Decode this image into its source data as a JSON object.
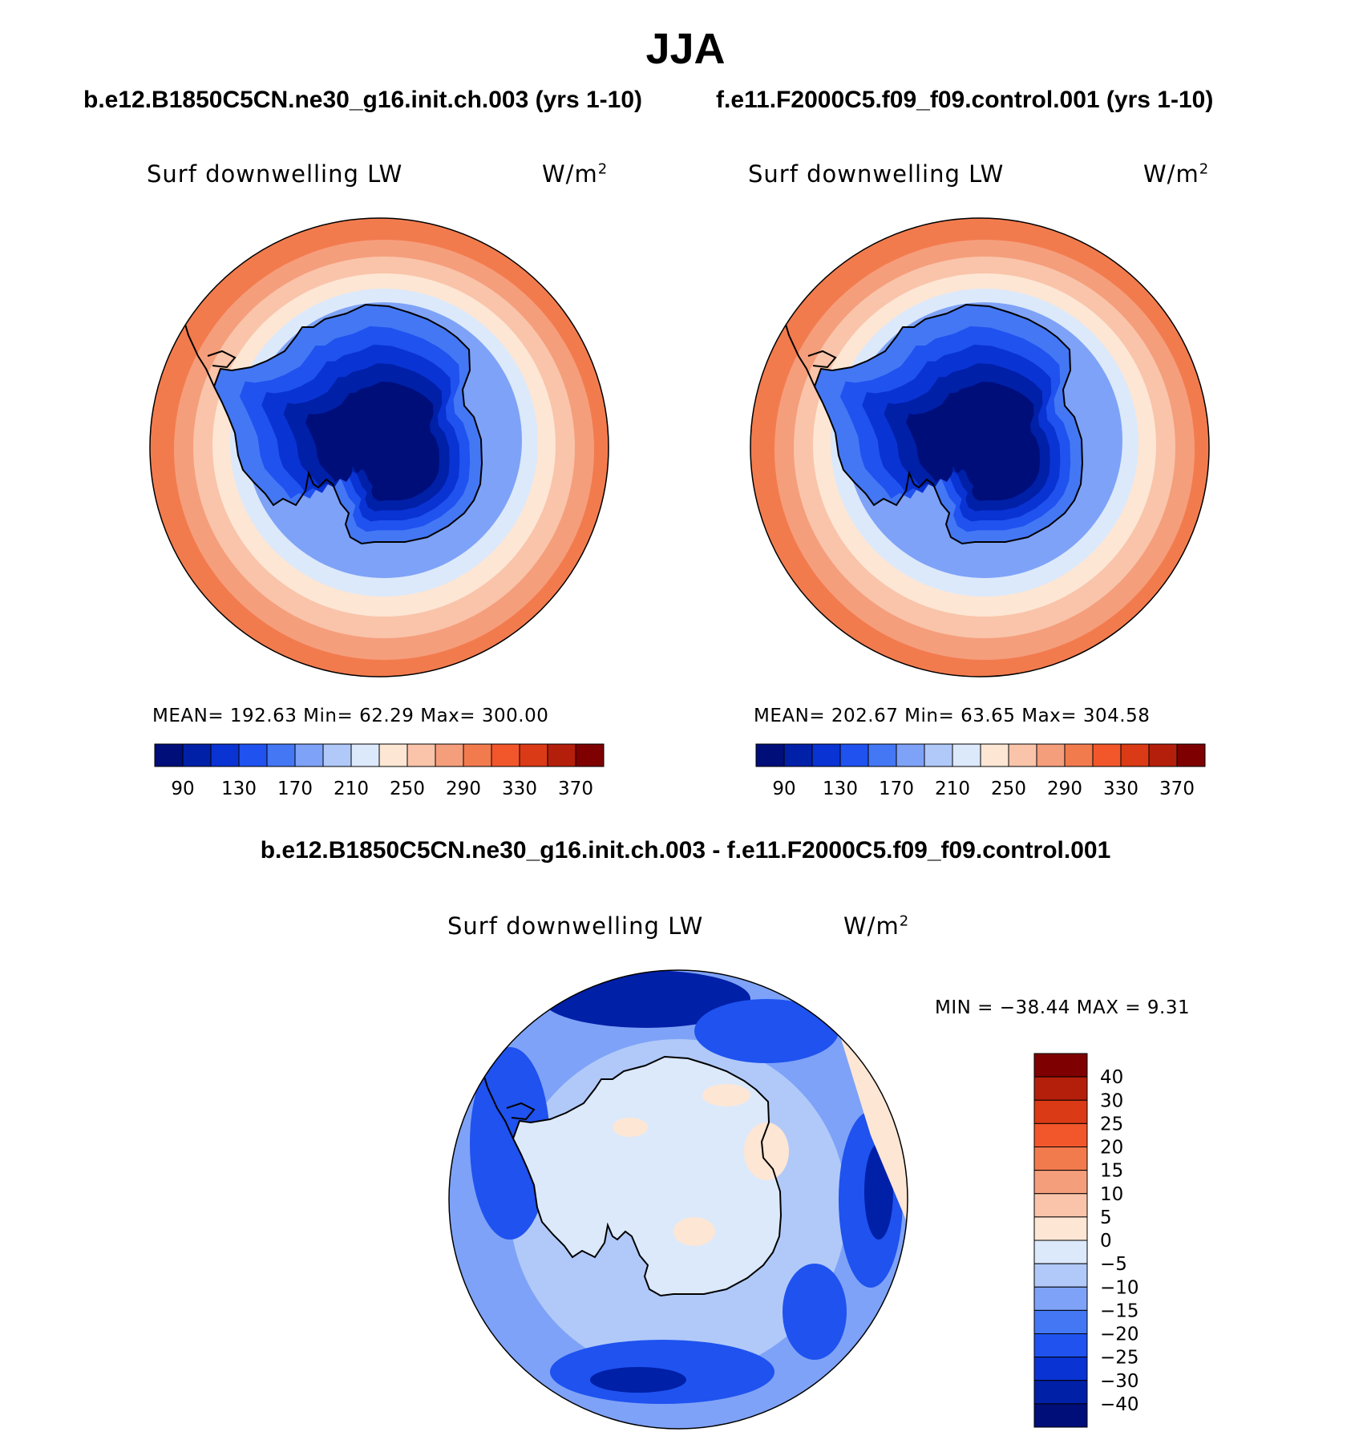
{
  "figure": {
    "title": "JJA",
    "left_case": "b.e12.B1850C5CN.ne30_g16.init.ch.003 (yrs 1-10)",
    "right_case": "f.e11.F2000C5.f09_f09.control.001 (yrs 1-10)",
    "diff_title": "b.e12.B1850C5CN.ne30_g16.init.ch.003 - f.e11.F2000C5.f09_f09.control.001"
  },
  "panels": {
    "left": {
      "variable": "Surf downwelling LW",
      "units": "W/m",
      "units_exp": "2",
      "stats": "MEAN= 192.63   Min=   62.29   Max= 300.00"
    },
    "right": {
      "variable": "Surf downwelling LW",
      "units": "W/m",
      "units_exp": "2",
      "stats": "MEAN= 202.67   Min=   63.65   Max= 304.58"
    },
    "diff": {
      "variable": "Surf downwelling LW",
      "units": "W/m",
      "units_exp": "2",
      "stats": "MIN  =  −38.44  MAX  =     9.31"
    }
  },
  "colors": {
    "abs_palette": [
      "#000e7a",
      "#0020a8",
      "#0a33d4",
      "#1f52ef",
      "#4477f4",
      "#7ea2f7",
      "#b0c9f9",
      "#dce9fb",
      "#fde6d4",
      "#f9c4aa",
      "#f59e7c",
      "#f27b4e",
      "#f2562b",
      "#da3a15",
      "#b41f0c",
      "#7e0000"
    ],
    "diff_palette": [
      "#000e7a",
      "#0020a8",
      "#0a33d4",
      "#1f52ef",
      "#4477f4",
      "#7ea2f7",
      "#b0c9f9",
      "#dce9fb",
      "#fde6d4",
      "#f9c4aa",
      "#f59e7c",
      "#f27b4e",
      "#f2562b",
      "#da3a15",
      "#b41f0c",
      "#7e0000"
    ]
  },
  "chart_data": [
    {
      "type": "heatmap",
      "projection": "south-polar stereographic",
      "title": "b.e12.B1850C5CN.ne30_g16.init.ch.003 (yrs 1-10)",
      "variable": "Surf downwelling LW",
      "units": "W/m2",
      "mean": 192.63,
      "min": 62.29,
      "max": 300.0,
      "colorbar_ticks": [
        90,
        130,
        170,
        210,
        250,
        290,
        330,
        370
      ],
      "colorbar_ticks_text": [
        "90",
        "130",
        "170",
        "210",
        "250",
        "290",
        "330",
        "370"
      ],
      "contour_levels": [
        80,
        90,
        110,
        130,
        150,
        170,
        190,
        210,
        230,
        250,
        270,
        290,
        310,
        330,
        350,
        370
      ],
      "field_shape": {
        "center_value": 70,
        "coast_value": 150,
        "edge_value": 290
      }
    },
    {
      "type": "heatmap",
      "projection": "south-polar stereographic",
      "title": "f.e11.F2000C5.f09_f09.control.001 (yrs 1-10)",
      "variable": "Surf downwelling LW",
      "units": "W/m2",
      "mean": 202.67,
      "min": 63.65,
      "max": 304.58,
      "colorbar_ticks": [
        90,
        130,
        170,
        210,
        250,
        290,
        330,
        370
      ],
      "colorbar_ticks_text": [
        "90",
        "130",
        "170",
        "210",
        "250",
        "290",
        "330",
        "370"
      ],
      "contour_levels": [
        80,
        90,
        110,
        130,
        150,
        170,
        190,
        210,
        230,
        250,
        270,
        290,
        310,
        330,
        350,
        370
      ],
      "field_shape": {
        "center_value": 70,
        "coast_value": 150,
        "edge_value": 300
      }
    },
    {
      "type": "heatmap",
      "projection": "south-polar stereographic",
      "title": "b.e12.B1850C5CN.ne30_g16.init.ch.003 - f.e11.F2000C5.f09_f09.control.001",
      "variable": "Surf downwelling LW",
      "units": "W/m2",
      "min": -38.44,
      "max": 9.31,
      "colorbar_ticks": [
        -40,
        -30,
        -25,
        -20,
        -15,
        -10,
        -5,
        0,
        5,
        10,
        15,
        20,
        25,
        30,
        40
      ],
      "colorbar_ticks_text": [
        "−40",
        "−30",
        "−25",
        "−20",
        "−15",
        "−10",
        "−5",
        "0",
        "5",
        "10",
        "15",
        "20",
        "25",
        "30",
        "40"
      ]
    }
  ]
}
